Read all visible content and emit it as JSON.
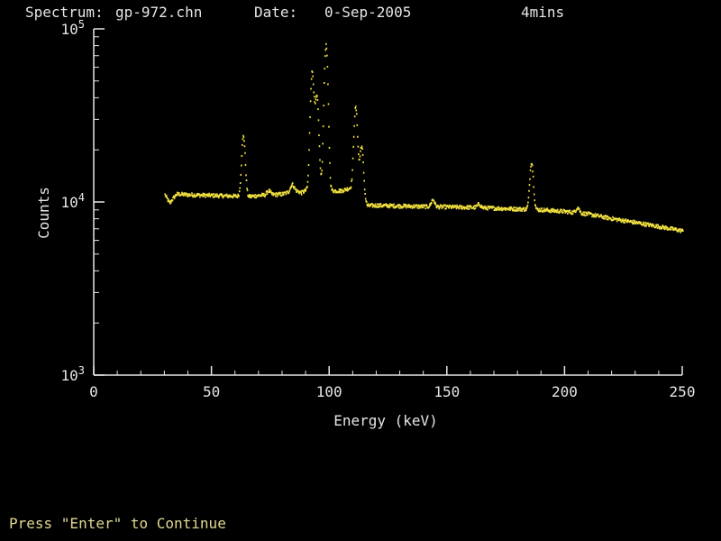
{
  "header": {
    "spectrum_label": "Spectrum:",
    "spectrum_file": "gp-972.chn",
    "date_label": "Date:",
    "date_value": "0-Sep-2005",
    "duration": "4mins"
  },
  "footer": {
    "prompt": "Press \"Enter\" to Continue"
  },
  "colors": {
    "background": "#000000",
    "axes": "#e6e6e6",
    "data": "#f0e040",
    "prompt": "#e0d890"
  },
  "chart_data": {
    "type": "scatter",
    "title": "",
    "xlabel": "Energy (keV)",
    "ylabel": "Counts",
    "xlim": [
      0,
      250
    ],
    "ylim": [
      1000,
      100000
    ],
    "yscale": "log",
    "x_ticks": [
      0,
      50,
      100,
      150,
      200,
      250
    ],
    "x_tick_labels": [
      "0",
      "50",
      "100",
      "150",
      "200",
      "250"
    ],
    "y_ticks": [
      1000,
      10000,
      100000
    ],
    "y_tick_labels": [
      {
        "base": "10",
        "exp": "3"
      },
      {
        "base": "10",
        "exp": "4"
      },
      {
        "base": "10",
        "exp": "5"
      }
    ],
    "grid": false,
    "continuum": [
      [
        30,
        11000
      ],
      [
        32,
        9800
      ],
      [
        33,
        10300
      ],
      [
        35,
        11100
      ],
      [
        40,
        11000
      ],
      [
        50,
        10900
      ],
      [
        60,
        10800
      ],
      [
        65,
        10700
      ],
      [
        70,
        10900
      ],
      [
        80,
        11100
      ],
      [
        85,
        11700
      ],
      [
        88,
        11300
      ],
      [
        90,
        11700
      ],
      [
        92,
        12200
      ],
      [
        95,
        13000
      ],
      [
        98,
        11900
      ],
      [
        100,
        11600
      ],
      [
        105,
        11600
      ],
      [
        110,
        12200
      ],
      [
        113,
        11500
      ],
      [
        116,
        9500
      ],
      [
        120,
        9550
      ],
      [
        140,
        9400
      ],
      [
        160,
        9300
      ],
      [
        180,
        9100
      ],
      [
        190,
        9000
      ],
      [
        200,
        8800
      ],
      [
        210,
        8500
      ],
      [
        220,
        8000
      ],
      [
        230,
        7600
      ],
      [
        240,
        7200
      ],
      [
        250,
        6800
      ]
    ],
    "peaks": [
      {
        "x": 63.3,
        "y": 24000
      },
      {
        "x": 74.0,
        "y": 11600
      },
      {
        "x": 84.0,
        "y": 12600
      },
      {
        "x": 92.5,
        "y": 56000
      },
      {
        "x": 94.5,
        "y": 40000
      },
      {
        "x": 98.4,
        "y": 80000
      },
      {
        "x": 111.0,
        "y": 35000
      },
      {
        "x": 113.5,
        "y": 21000
      },
      {
        "x": 143.8,
        "y": 10300
      },
      {
        "x": 163.4,
        "y": 9700
      },
      {
        "x": 185.7,
        "y": 17000
      },
      {
        "x": 205.3,
        "y": 9300
      }
    ]
  }
}
